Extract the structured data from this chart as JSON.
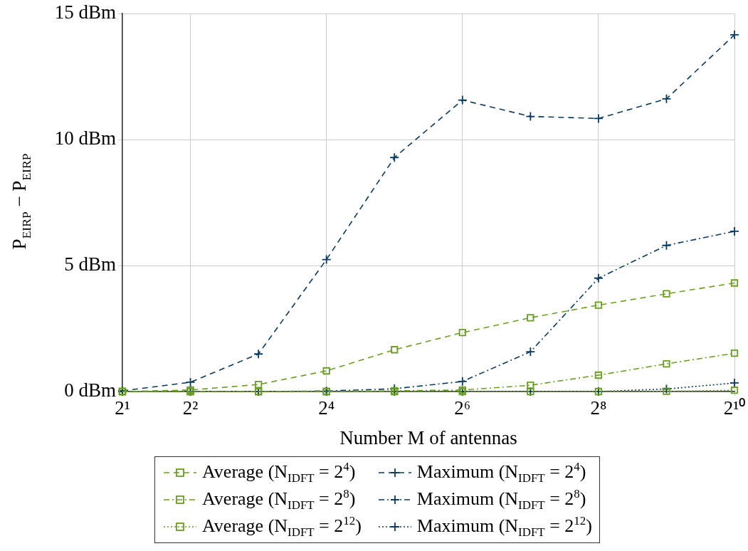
{
  "chart_data": {
    "type": "line",
    "xlabel": "Number M of antennas",
    "ylabel": "P$_{EIRP}$ − P$_{EIRP}$",
    "x": [
      2,
      4,
      8,
      16,
      32,
      64,
      128,
      256,
      512,
      1024
    ],
    "xlim": [
      2,
      1024
    ],
    "xticks": [
      {
        "value": 2,
        "label": "2¹"
      },
      {
        "value": 4,
        "label": "2²"
      },
      {
        "value": 16,
        "label": "2⁴"
      },
      {
        "value": 64,
        "label": "2⁶"
      },
      {
        "value": 256,
        "label": "2⁸"
      },
      {
        "value": 1024,
        "label": "2¹⁰"
      }
    ],
    "ylim": [
      0,
      15
    ],
    "yticks": [
      {
        "value": 0,
        "label": "0 dBm"
      },
      {
        "value": 5,
        "label": "5 dBm"
      },
      {
        "value": 10,
        "label": "10 dBm"
      },
      {
        "value": 15,
        "label": "15 dBm"
      }
    ],
    "log": "x",
    "grid": true,
    "legend": "bottom",
    "series": [
      {
        "name": "Average (N$_{IDFT}$ = 2$^{4}$)",
        "color": "#6a9e1f",
        "marker": "square",
        "line_style": "dashed",
        "values": [
          0,
          0.06,
          0.28,
          0.82,
          1.66,
          2.34,
          2.93,
          3.43,
          3.88,
          4.31
        ]
      },
      {
        "name": "Average (N$_{IDFT}$ = 2$^{8}$)",
        "color": "#6a9e1f",
        "marker": "square",
        "line_style": "dashdot",
        "values": [
          0,
          0,
          0,
          0,
          0.03,
          0.06,
          0.25,
          0.65,
          1.1,
          1.52
        ]
      },
      {
        "name": "Average (N$_{IDFT}$ = 2$^{12}$)",
        "color": "#6a9e1f",
        "marker": "square",
        "line_style": "dotted",
        "values": [
          0,
          0,
          0,
          0,
          0,
          0,
          0,
          0,
          0.01,
          0.05
        ]
      },
      {
        "name": "Maximum (N$_{IDFT}$ = 2$^{4}$)",
        "color": "#0b3a5e",
        "marker": "cross",
        "line_style": "dashed",
        "values": [
          0.03,
          0.37,
          1.49,
          5.24,
          9.29,
          11.57,
          10.92,
          10.84,
          11.62,
          14.16
        ]
      },
      {
        "name": "Maximum (N$_{IDFT}$ = 2$^{8}$)",
        "color": "#0b3a5e",
        "marker": "cross",
        "line_style": "dashdot",
        "values": [
          0,
          0,
          0,
          0.02,
          0.11,
          0.4,
          1.58,
          4.5,
          5.8,
          6.36
        ]
      },
      {
        "name": "Maximum (N$_{IDFT}$ = 2$^{12}$)",
        "color": "#0b3a5e",
        "marker": "cross",
        "line_style": "dotted",
        "values": [
          0,
          0,
          0,
          0,
          0,
          0,
          0,
          0,
          0.1,
          0.34
        ]
      }
    ]
  }
}
